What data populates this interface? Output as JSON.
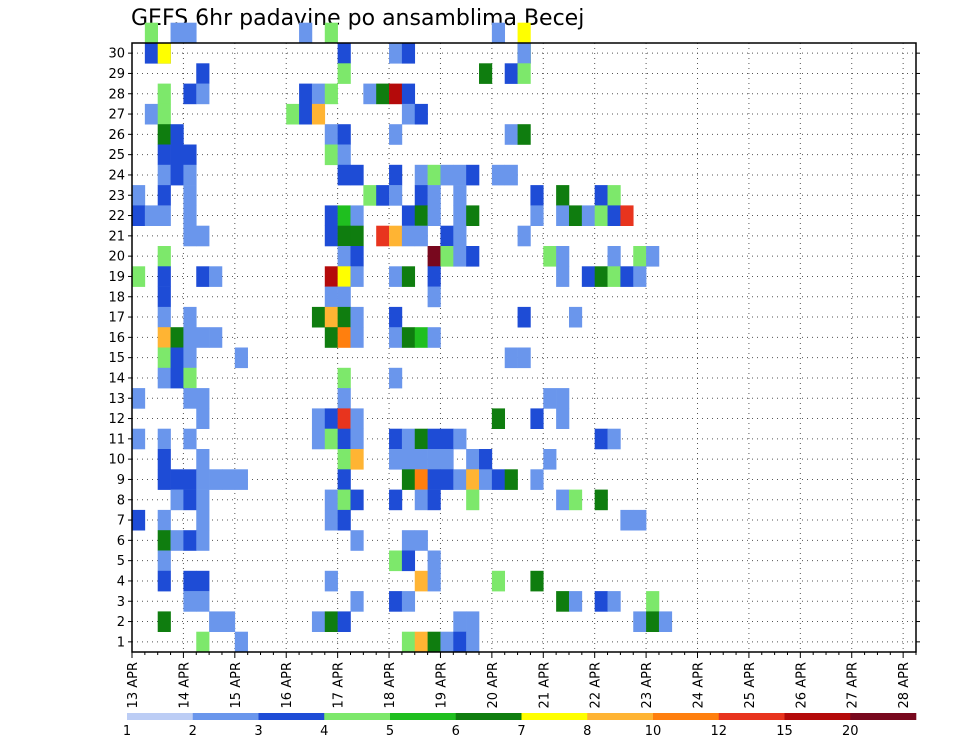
{
  "chart_data": {
    "type": "heatmap",
    "title": "GEFS 6hr padavine po ansamblima Becej",
    "x_tick_labels": [
      "13 APR",
      "14 APR",
      "15 APR",
      "16 APR",
      "17 APR",
      "18 APR",
      "19 APR",
      "20 APR",
      "21 APR",
      "22 APR",
      "23 APR",
      "24 APR",
      "25 APR",
      "26 APR",
      "27 APR",
      "28 APR"
    ],
    "y_tick_labels": [
      "1",
      "2",
      "3",
      "4",
      "5",
      "6",
      "7",
      "8",
      "9",
      "10",
      "11",
      "12",
      "13",
      "14",
      "15",
      "16",
      "17",
      "18",
      "19",
      "20",
      "21",
      "22",
      "23",
      "24",
      "25",
      "26",
      "27",
      "28",
      "29",
      "30"
    ],
    "x_range": [
      0,
      61
    ],
    "y_range": [
      0,
      30
    ],
    "grid": true,
    "colorbar": {
      "tick_labels": [
        "1",
        "2",
        "3",
        "4",
        "5",
        "6",
        "7",
        "8",
        "10",
        "12",
        "15",
        "20"
      ],
      "colors": [
        "#bccdf5",
        "#6a96ec",
        "#1e4cd6",
        "#7de86b",
        "#1fbf1f",
        "#0f7d0f",
        "#ffff00",
        "#ffb433",
        "#ff7f0e",
        "#e8341e",
        "#b40a0a",
        "#78081e"
      ]
    },
    "cells": [
      [
        1,
        30,
        3
      ],
      [
        3,
        30,
        1
      ],
      [
        4,
        30,
        1
      ],
      [
        13,
        30,
        1
      ],
      [
        15,
        30,
        3
      ],
      [
        28,
        30,
        1
      ],
      [
        30,
        30,
        6
      ],
      [
        1,
        29,
        2
      ],
      [
        2,
        29,
        2
      ],
      [
        2,
        29,
        6
      ],
      [
        16,
        29,
        2
      ],
      [
        20,
        29,
        1
      ],
      [
        21,
        29,
        2
      ],
      [
        30,
        29,
        5
      ],
      [
        30,
        29,
        1
      ],
      [
        5,
        28,
        2
      ],
      [
        16,
        28,
        3
      ],
      [
        27,
        28,
        5
      ],
      [
        29,
        28,
        2
      ],
      [
        30,
        28,
        3
      ],
      [
        2,
        27,
        3
      ],
      [
        4,
        27,
        2
      ],
      [
        5,
        27,
        1
      ],
      [
        13,
        27,
        2
      ],
      [
        14,
        27,
        1
      ],
      [
        15,
        27,
        3
      ],
      [
        18,
        27,
        1
      ],
      [
        19,
        27,
        5
      ],
      [
        20,
        27,
        10
      ],
      [
        21,
        27,
        2
      ],
      [
        1,
        26,
        1
      ],
      [
        2,
        26,
        3
      ],
      [
        12,
        26,
        3
      ],
      [
        13,
        26,
        2
      ],
      [
        14,
        26,
        7
      ],
      [
        21,
        26,
        1
      ],
      [
        22,
        26,
        2
      ],
      [
        2,
        25,
        5
      ],
      [
        3,
        25,
        2
      ],
      [
        15,
        25,
        1
      ],
      [
        16,
        25,
        2
      ],
      [
        20,
        25,
        1
      ],
      [
        29,
        25,
        1
      ],
      [
        30,
        25,
        5
      ],
      [
        2,
        24,
        2
      ],
      [
        3,
        24,
        2
      ],
      [
        4,
        24,
        2
      ],
      [
        15,
        24,
        3
      ],
      [
        16,
        24,
        1
      ],
      [
        2,
        23,
        1
      ],
      [
        3,
        23,
        2
      ],
      [
        4,
        23,
        1
      ],
      [
        16,
        23,
        2
      ],
      [
        17,
        23,
        2
      ],
      [
        20,
        23,
        2
      ],
      [
        22,
        23,
        1
      ],
      [
        23,
        23,
        3
      ],
      [
        24,
        23,
        1
      ],
      [
        25,
        23,
        1
      ],
      [
        26,
        23,
        2
      ],
      [
        28,
        23,
        1
      ],
      [
        29,
        23,
        1
      ],
      [
        0,
        22,
        1
      ],
      [
        2,
        22,
        2
      ],
      [
        4,
        22,
        1
      ],
      [
        18,
        22,
        3
      ],
      [
        19,
        22,
        2
      ],
      [
        20,
        22,
        1
      ],
      [
        22,
        22,
        2
      ],
      [
        23,
        22,
        1
      ],
      [
        25,
        22,
        1
      ],
      [
        31,
        22,
        2
      ],
      [
        33,
        22,
        5
      ],
      [
        36,
        22,
        2
      ],
      [
        37,
        22,
        3
      ],
      [
        0,
        21,
        2
      ],
      [
        1,
        21,
        1
      ],
      [
        2,
        21,
        1
      ],
      [
        4,
        21,
        1
      ],
      [
        15,
        21,
        2
      ],
      [
        16,
        21,
        4
      ],
      [
        17,
        21,
        1
      ],
      [
        21,
        21,
        2
      ],
      [
        22,
        21,
        5
      ],
      [
        23,
        21,
        1
      ],
      [
        25,
        21,
        1
      ],
      [
        26,
        21,
        5
      ],
      [
        31,
        21,
        1
      ],
      [
        33,
        21,
        1
      ],
      [
        34,
        21,
        5
      ],
      [
        35,
        21,
        1
      ],
      [
        36,
        21,
        3
      ],
      [
        37,
        21,
        2
      ],
      [
        38,
        21,
        9
      ],
      [
        4,
        20,
        1
      ],
      [
        5,
        20,
        1
      ],
      [
        15,
        20,
        2
      ],
      [
        16,
        20,
        5
      ],
      [
        17,
        20,
        5
      ],
      [
        19,
        20,
        9
      ],
      [
        20,
        20,
        7
      ],
      [
        21,
        20,
        1
      ],
      [
        22,
        20,
        1
      ],
      [
        24,
        20,
        2
      ],
      [
        25,
        20,
        1
      ],
      [
        30,
        20,
        1
      ],
      [
        2,
        19,
        3
      ],
      [
        16,
        19,
        1
      ],
      [
        17,
        19,
        2
      ],
      [
        23,
        19,
        11
      ],
      [
        24,
        19,
        3
      ],
      [
        25,
        19,
        1
      ],
      [
        26,
        19,
        2
      ],
      [
        32,
        19,
        3
      ],
      [
        33,
        19,
        1
      ],
      [
        37,
        19,
        1
      ],
      [
        39,
        19,
        3
      ],
      [
        40,
        19,
        1
      ],
      [
        0,
        18,
        3
      ],
      [
        2,
        18,
        2
      ],
      [
        5,
        18,
        2
      ],
      [
        6,
        18,
        1
      ],
      [
        15,
        18,
        10
      ],
      [
        16,
        18,
        6
      ],
      [
        17,
        18,
        1
      ],
      [
        20,
        18,
        1
      ],
      [
        21,
        18,
        5
      ],
      [
        23,
        18,
        2
      ],
      [
        33,
        18,
        1
      ],
      [
        35,
        18,
        2
      ],
      [
        36,
        18,
        5
      ],
      [
        37,
        18,
        3
      ],
      [
        38,
        18,
        2
      ],
      [
        39,
        18,
        1
      ],
      [
        2,
        17,
        2
      ],
      [
        15,
        17,
        1
      ],
      [
        16,
        17,
        1
      ],
      [
        23,
        17,
        1
      ],
      [
        2,
        16,
        1
      ],
      [
        4,
        16,
        1
      ],
      [
        14,
        16,
        5
      ],
      [
        15,
        16,
        7
      ],
      [
        16,
        16,
        5
      ],
      [
        17,
        16,
        1
      ],
      [
        20,
        16,
        2
      ],
      [
        34,
        16,
        1
      ],
      [
        30,
        16,
        2
      ],
      [
        2,
        15,
        7
      ],
      [
        3,
        15,
        5
      ],
      [
        4,
        15,
        1
      ],
      [
        5,
        15,
        1
      ],
      [
        6,
        15,
        1
      ],
      [
        15,
        15,
        5
      ],
      [
        16,
        15,
        8
      ],
      [
        17,
        15,
        1
      ],
      [
        20,
        15,
        1
      ],
      [
        21,
        15,
        5
      ],
      [
        22,
        15,
        4
      ],
      [
        23,
        15,
        1
      ],
      [
        2,
        14,
        3
      ],
      [
        3,
        14,
        2
      ],
      [
        4,
        14,
        1
      ],
      [
        8,
        14,
        1
      ],
      [
        29,
        14,
        1
      ],
      [
        30,
        14,
        1
      ],
      [
        2,
        13,
        1
      ],
      [
        3,
        13,
        2
      ],
      [
        4,
        13,
        3
      ],
      [
        16,
        13,
        3
      ],
      [
        20,
        13,
        1
      ],
      [
        0,
        12,
        1
      ],
      [
        4,
        12,
        1
      ],
      [
        5,
        12,
        1
      ],
      [
        16,
        12,
        1
      ],
      [
        32,
        12,
        1
      ],
      [
        33,
        12,
        1
      ],
      [
        5,
        11,
        1
      ],
      [
        14,
        11,
        1
      ],
      [
        15,
        11,
        2
      ],
      [
        16,
        11,
        9
      ],
      [
        17,
        11,
        1
      ],
      [
        28,
        11,
        5
      ],
      [
        31,
        11,
        2
      ],
      [
        33,
        11,
        1
      ],
      [
        0,
        10,
        1
      ],
      [
        2,
        10,
        1
      ],
      [
        4,
        10,
        1
      ],
      [
        14,
        10,
        1
      ],
      [
        15,
        10,
        3
      ],
      [
        16,
        10,
        2
      ],
      [
        17,
        10,
        1
      ],
      [
        20,
        10,
        2
      ],
      [
        21,
        10,
        1
      ],
      [
        22,
        10,
        5
      ],
      [
        23,
        10,
        2
      ],
      [
        24,
        10,
        2
      ],
      [
        25,
        10,
        1
      ],
      [
        36,
        10,
        2
      ],
      [
        37,
        10,
        1
      ],
      [
        2,
        9,
        2
      ],
      [
        5,
        9,
        1
      ],
      [
        16,
        9,
        3
      ],
      [
        17,
        9,
        7
      ],
      [
        20,
        9,
        1
      ],
      [
        21,
        9,
        1
      ],
      [
        22,
        9,
        1
      ],
      [
        23,
        9,
        1
      ],
      [
        24,
        9,
        1
      ],
      [
        26,
        9,
        1
      ],
      [
        27,
        9,
        2
      ],
      [
        32,
        9,
        1
      ],
      [
        2,
        8,
        2
      ],
      [
        3,
        8,
        2
      ],
      [
        4,
        8,
        2
      ],
      [
        5,
        8,
        1
      ],
      [
        6,
        8,
        1
      ],
      [
        7,
        8,
        1
      ],
      [
        8,
        8,
        1
      ],
      [
        16,
        8,
        2
      ],
      [
        21,
        8,
        5
      ],
      [
        22,
        8,
        8
      ],
      [
        23,
        8,
        2
      ],
      [
        24,
        8,
        2
      ],
      [
        25,
        8,
        1
      ],
      [
        26,
        8,
        7
      ],
      [
        27,
        8,
        1
      ],
      [
        28,
        8,
        2
      ],
      [
        29,
        8,
        5
      ],
      [
        31,
        8,
        1
      ],
      [
        3,
        7,
        1
      ],
      [
        4,
        7,
        2
      ],
      [
        5,
        7,
        1
      ],
      [
        15,
        7,
        1
      ],
      [
        16,
        7,
        3
      ],
      [
        17,
        7,
        2
      ],
      [
        20,
        7,
        2
      ],
      [
        22,
        7,
        1
      ],
      [
        23,
        7,
        2
      ],
      [
        26,
        7,
        3
      ],
      [
        33,
        7,
        1
      ],
      [
        34,
        7,
        3
      ],
      [
        36,
        7,
        5
      ],
      [
        0,
        6,
        2
      ],
      [
        2,
        6,
        1
      ],
      [
        5,
        6,
        1
      ],
      [
        15,
        6,
        1
      ],
      [
        16,
        6,
        2
      ],
      [
        38,
        6,
        1
      ],
      [
        39,
        6,
        1
      ],
      [
        2,
        5,
        5
      ],
      [
        3,
        5,
        1
      ],
      [
        4,
        5,
        2
      ],
      [
        5,
        5,
        1
      ],
      [
        17,
        5,
        1
      ],
      [
        21,
        5,
        1
      ],
      [
        22,
        5,
        1
      ],
      [
        2,
        4,
        1
      ],
      [
        20,
        4,
        3
      ],
      [
        21,
        4,
        2
      ],
      [
        23,
        4,
        1
      ],
      [
        2,
        3,
        2
      ],
      [
        4,
        3,
        2
      ],
      [
        5,
        3,
        2
      ],
      [
        15,
        3,
        1
      ],
      [
        22,
        3,
        7
      ],
      [
        23,
        3,
        1
      ],
      [
        28,
        3,
        3
      ],
      [
        31,
        3,
        5
      ],
      [
        4,
        2,
        1
      ],
      [
        5,
        2,
        1
      ],
      [
        17,
        2,
        1
      ],
      [
        20,
        2,
        2
      ],
      [
        21,
        2,
        1
      ],
      [
        33,
        2,
        5
      ],
      [
        34,
        2,
        1
      ],
      [
        36,
        2,
        2
      ],
      [
        37,
        2,
        1
      ],
      [
        40,
        2,
        3
      ],
      [
        2,
        1,
        5
      ],
      [
        6,
        1,
        1
      ],
      [
        7,
        1,
        1
      ],
      [
        14,
        1,
        1
      ],
      [
        15,
        1,
        5
      ],
      [
        16,
        1,
        2
      ],
      [
        25,
        1,
        1
      ],
      [
        26,
        1,
        1
      ],
      [
        39,
        1,
        1
      ],
      [
        40,
        1,
        5
      ],
      [
        41,
        1,
        1
      ],
      [
        5,
        0,
        3
      ],
      [
        8,
        0,
        1
      ],
      [
        21,
        0,
        3
      ],
      [
        22,
        0,
        7
      ],
      [
        23,
        0,
        5
      ],
      [
        24,
        0,
        1
      ],
      [
        25,
        0,
        2
      ],
      [
        26,
        0,
        1
      ]
    ]
  }
}
